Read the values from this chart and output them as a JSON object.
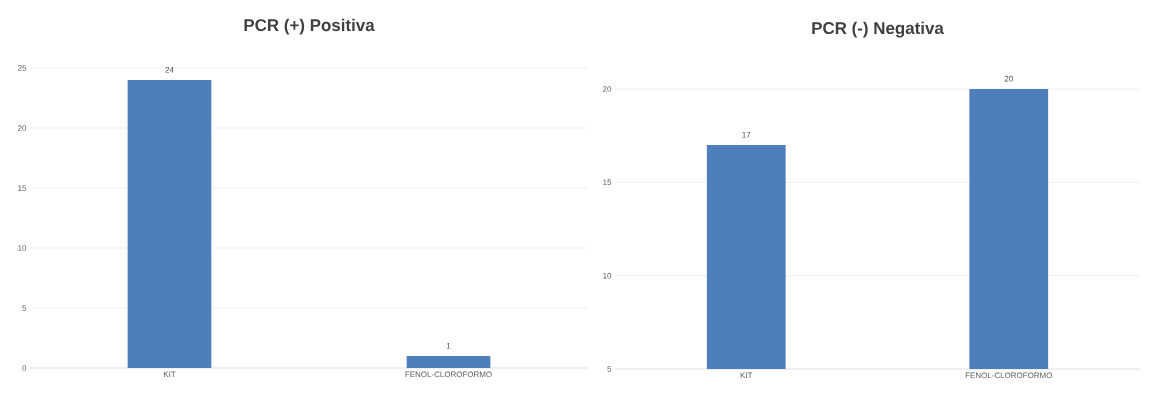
{
  "chart_data": [
    {
      "type": "bar",
      "title": "PCR (+) Positiva",
      "categories": [
        "KIT",
        "FENOL-CLOROFORMO"
      ],
      "values": [
        24,
        1
      ],
      "color": "#4e7fbb",
      "ylim": [
        0,
        25
      ],
      "yticks": [
        0,
        5,
        10,
        15,
        20,
        25
      ],
      "grid": "y",
      "data_labels": true
    },
    {
      "type": "bar",
      "title": "PCR (-) Negativa",
      "categories": [
        "KIT",
        "FENOL-CLOROFORMO"
      ],
      "values": [
        17,
        20
      ],
      "color": "#4e7fbb",
      "ylim": [
        5,
        20
      ],
      "yticks": [
        5,
        10,
        15,
        20
      ],
      "grid": "y",
      "data_labels": true
    }
  ]
}
